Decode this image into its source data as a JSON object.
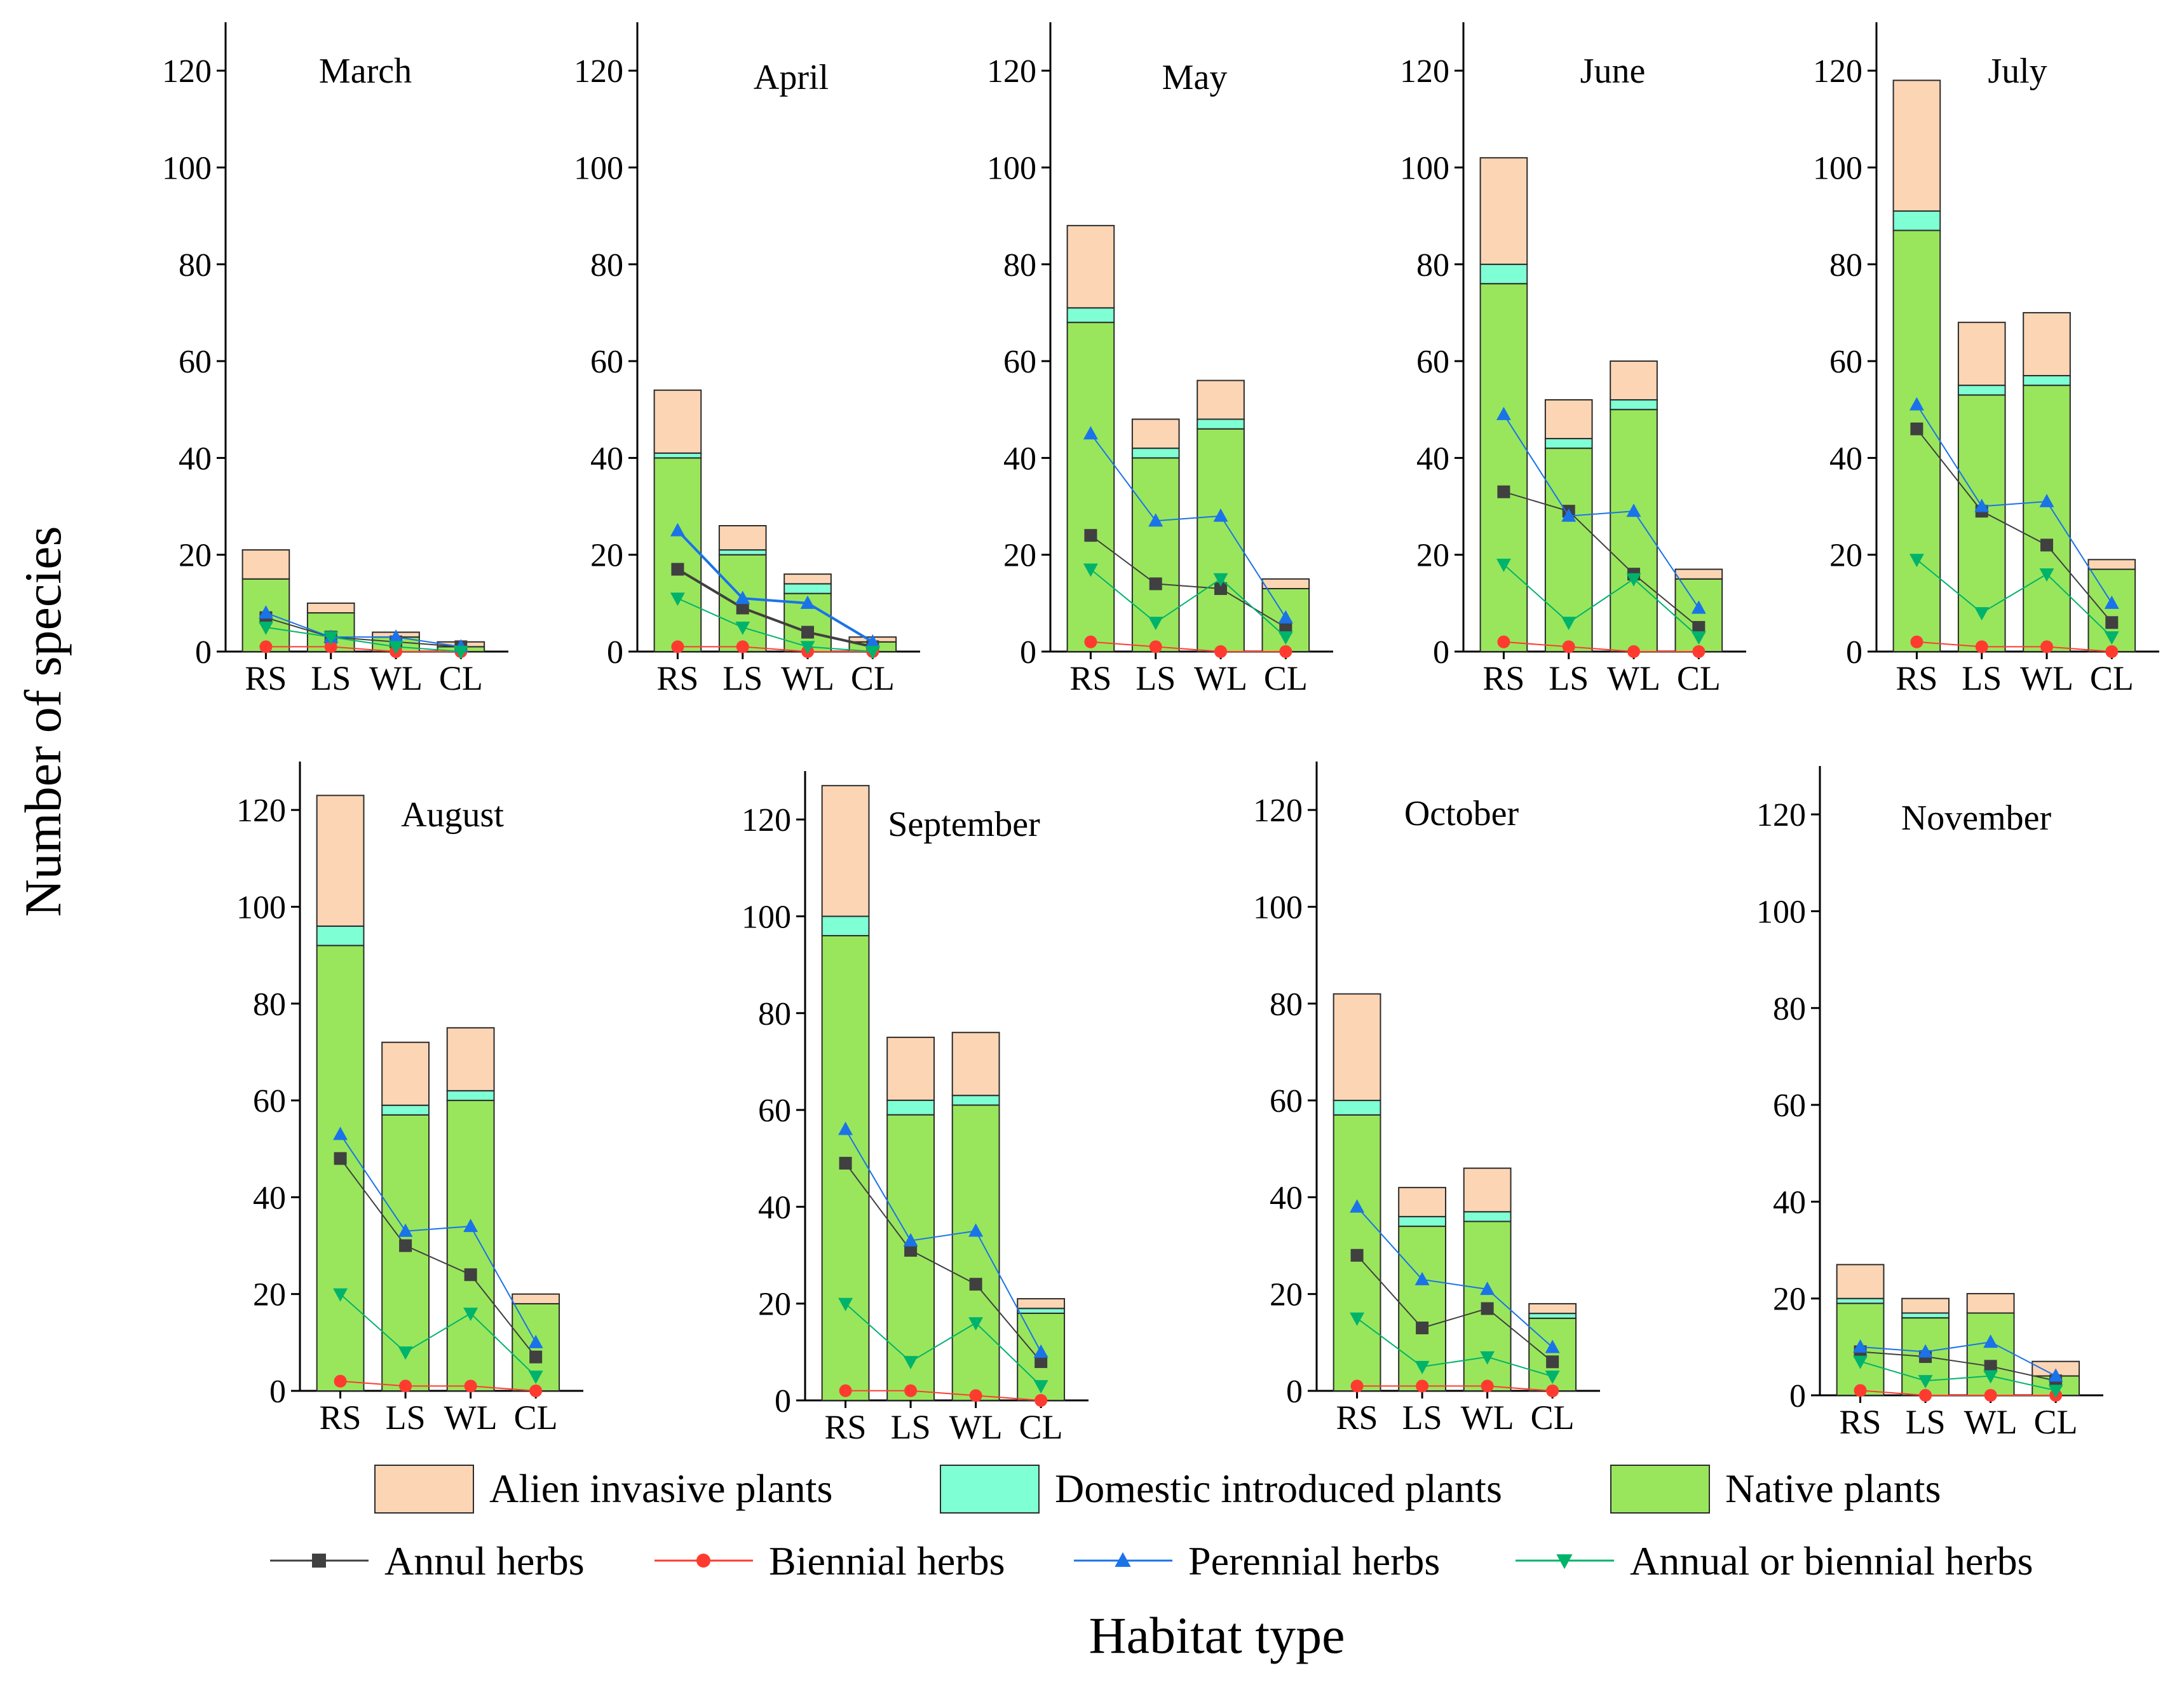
{
  "chart_data": {
    "type": "bar",
    "description_y_label": "Number of species",
    "ylabel": "Number of species",
    "xlabel": "Habitat type",
    "categories": [
      "RS",
      "LS",
      "WL",
      "CL"
    ],
    "ylim": [
      0,
      130
    ],
    "yticks": [
      0,
      20,
      40,
      60,
      80,
      100,
      120
    ],
    "colors": {
      "alien": "#fcd5b5",
      "domestic": "#7fffd4",
      "native": "#99e65c",
      "annual": "#404040",
      "biennial": "#ff3b30",
      "perennial": "#1a73e8",
      "annual_biennial": "#00b36b"
    },
    "legend": {
      "bars": [
        {
          "key": "alien",
          "label": "Alien invasive plants"
        },
        {
          "key": "domestic",
          "label": "Domestic introduced plants"
        },
        {
          "key": "native",
          "label": "Native plants"
        }
      ],
      "lines": [
        {
          "key": "annual",
          "label": "Annul herbs",
          "marker": "square"
        },
        {
          "key": "biennial",
          "label": "Biennial herbs",
          "marker": "circle"
        },
        {
          "key": "perennial",
          "label": "Perennial herbs",
          "marker": "triangle-up"
        },
        {
          "key": "annual_biennial",
          "label": "Annual or biennial herbs",
          "marker": "triangle-down"
        }
      ]
    },
    "panels": [
      {
        "title": "March",
        "native": [
          15,
          8,
          3,
          1
        ],
        "domestic": [
          0,
          0,
          0,
          0
        ],
        "alien": [
          6,
          2,
          1,
          1
        ],
        "annual": [
          7,
          3,
          2,
          1
        ],
        "biennial": [
          1,
          1,
          0,
          0
        ],
        "perennial": [
          8,
          3,
          3,
          1
        ],
        "annual_biennial": [
          5,
          3,
          1,
          0
        ]
      },
      {
        "title": "April",
        "native": [
          40,
          20,
          12,
          2
        ],
        "domestic": [
          1,
          1,
          2,
          0
        ],
        "alien": [
          13,
          5,
          2,
          1
        ],
        "annual": [
          17,
          9,
          4,
          1
        ],
        "biennial": [
          1,
          1,
          0,
          0
        ],
        "perennial": [
          25,
          11,
          10,
          2
        ],
        "annual_biennial": [
          11,
          5,
          1,
          0
        ]
      },
      {
        "title": "May",
        "native": [
          68,
          40,
          46,
          13
        ],
        "domestic": [
          3,
          2,
          2,
          0
        ],
        "alien": [
          17,
          6,
          8,
          2
        ],
        "annual": [
          24,
          14,
          13,
          5
        ],
        "biennial": [
          2,
          1,
          0,
          0
        ],
        "perennial": [
          45,
          27,
          28,
          7
        ],
        "annual_biennial": [
          17,
          6,
          15,
          3
        ]
      },
      {
        "title": "June",
        "native": [
          76,
          42,
          50,
          15
        ],
        "domestic": [
          4,
          2,
          2,
          0
        ],
        "alien": [
          22,
          8,
          8,
          2
        ],
        "annual": [
          33,
          29,
          16,
          5
        ],
        "biennial": [
          2,
          1,
          0,
          0
        ],
        "perennial": [
          49,
          28,
          29,
          9
        ],
        "annual_biennial": [
          18,
          6,
          15,
          3
        ]
      },
      {
        "title": "July",
        "native": [
          87,
          53,
          55,
          17
        ],
        "domestic": [
          4,
          2,
          2,
          0
        ],
        "alien": [
          27,
          13,
          13,
          2
        ],
        "annual": [
          46,
          29,
          22,
          6
        ],
        "biennial": [
          2,
          1,
          1,
          0
        ],
        "perennial": [
          51,
          30,
          31,
          10
        ],
        "annual_biennial": [
          19,
          8,
          16,
          3
        ]
      },
      {
        "title": "August",
        "native": [
          92,
          57,
          60,
          18
        ],
        "domestic": [
          4,
          2,
          2,
          0
        ],
        "alien": [
          27,
          13,
          13,
          2
        ],
        "annual": [
          48,
          30,
          24,
          7
        ],
        "biennial": [
          2,
          1,
          1,
          0
        ],
        "perennial": [
          53,
          33,
          34,
          10
        ],
        "annual_biennial": [
          20,
          8,
          16,
          3
        ]
      },
      {
        "title": "September",
        "native": [
          96,
          59,
          61,
          18
        ],
        "domestic": [
          4,
          3,
          2,
          1
        ],
        "alien": [
          27,
          13,
          13,
          2
        ],
        "annual": [
          49,
          31,
          24,
          8
        ],
        "biennial": [
          2,
          2,
          1,
          0
        ],
        "perennial": [
          56,
          33,
          35,
          10
        ],
        "annual_biennial": [
          20,
          8,
          16,
          3
        ]
      },
      {
        "title": "October",
        "native": [
          57,
          34,
          35,
          15
        ],
        "domestic": [
          3,
          2,
          2,
          1
        ],
        "alien": [
          22,
          6,
          9,
          2
        ],
        "annual": [
          28,
          13,
          17,
          6
        ],
        "biennial": [
          1,
          1,
          1,
          0
        ],
        "perennial": [
          38,
          23,
          21,
          9
        ],
        "annual_biennial": [
          15,
          5,
          7,
          3
        ]
      },
      {
        "title": "November",
        "native": [
          19,
          16,
          17,
          4
        ],
        "domestic": [
          1,
          1,
          0,
          0
        ],
        "alien": [
          7,
          3,
          4,
          3
        ],
        "annual": [
          9,
          8,
          6,
          3
        ],
        "biennial": [
          1,
          0,
          0,
          0
        ],
        "perennial": [
          10,
          9,
          11,
          4
        ],
        "annual_biennial": [
          7,
          3,
          4,
          1
        ]
      }
    ]
  }
}
